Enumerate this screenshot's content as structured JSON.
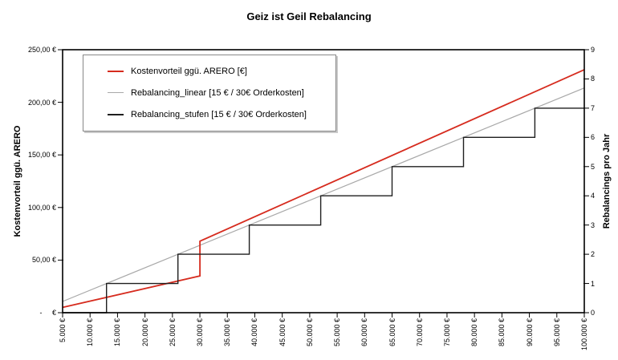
{
  "title": "Geiz ist Geil Rebalancing",
  "legend": {
    "items": [
      {
        "label": "Kostenvorteil ggü. ARERO [€]",
        "color": "#d62b1e",
        "line_width": 2
      },
      {
        "label": "Rebalancing_linear [15 € / 30€ Orderkosten]",
        "color": "#a8a8a8",
        "line_width": 1
      },
      {
        "label": "Rebalancing_stufen [15 € / 30€ Orderkosten]",
        "color": "#1f1f1f",
        "line_width": 2
      }
    ]
  },
  "chart_data": {
    "type": "line",
    "title": "Geiz ist Geil Rebalancing",
    "grid": false,
    "legend_position": "top-left-inside",
    "x_axis": {
      "min": 5000,
      "max": 100000,
      "tick_step": 5000,
      "tick_labels": [
        "5.000 €",
        "10.000 €",
        "15.000 €",
        "20.000 €",
        "25.000 €",
        "30.000 €",
        "35.000 €",
        "40.000 €",
        "45.000 €",
        "50.000 €",
        "55.000 €",
        "60.000 €",
        "65.000 €",
        "70.000 €",
        "75.000 €",
        "80.000 €",
        "85.000 €",
        "90.000 €",
        "95.000 €",
        "100.000 €"
      ]
    },
    "y_left": {
      "label": "Kostenvorteil ggü. ARERO",
      "min": 0,
      "max": 250,
      "tick_step": 50,
      "tick_labels": [
        "-     €",
        "50,00 €",
        "100,00 €",
        "150,00 €",
        "200,00 €",
        "250,00 €"
      ]
    },
    "y_right": {
      "label": "Rebalancings pro Jahr",
      "min": 0,
      "max": 9,
      "tick_step": 1,
      "tick_labels": [
        "0",
        "1",
        "2",
        "3",
        "4",
        "5",
        "6",
        "7",
        "8",
        "9"
      ]
    },
    "series": [
      {
        "name": "Kostenvorteil ggü. ARERO [€]",
        "axis": "left",
        "color": "#d62b1e",
        "width": 1.8,
        "points": [
          [
            5000,
            5
          ],
          [
            30000,
            35
          ],
          [
            30000,
            68
          ],
          [
            100000,
            231
          ]
        ]
      },
      {
        "name": "Rebalancing_linear [15 € / 30€ Orderkosten]",
        "axis": "right",
        "color": "#a8a8a8",
        "width": 1.2,
        "points": [
          [
            5000,
            0.385
          ],
          [
            100000,
            7.692
          ]
        ]
      },
      {
        "name": "Rebalancing_stufen [15 € / 30€ Orderkosten]",
        "axis": "right",
        "color": "#1f1f1f",
        "width": 1.4,
        "points": [
          [
            5000,
            0
          ],
          [
            13000,
            0
          ],
          [
            13000,
            1
          ],
          [
            26000,
            1
          ],
          [
            26000,
            2
          ],
          [
            39000,
            2
          ],
          [
            39000,
            3
          ],
          [
            52000,
            3
          ],
          [
            52000,
            4
          ],
          [
            65000,
            4
          ],
          [
            65000,
            5
          ],
          [
            78000,
            5
          ],
          [
            78000,
            6
          ],
          [
            91000,
            6
          ],
          [
            91000,
            7
          ],
          [
            100000,
            7
          ]
        ]
      }
    ]
  }
}
